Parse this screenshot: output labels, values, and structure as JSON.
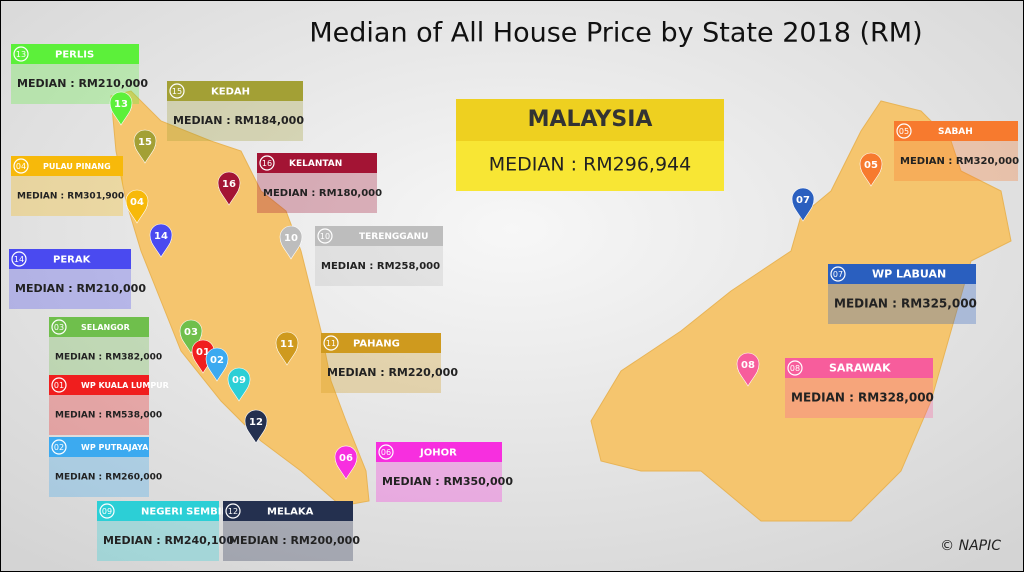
{
  "title": "Median of All House Price by State 2018 (RM)",
  "national": {
    "name": "MALAYSIA",
    "median": "MEDIAN : RM296,944"
  },
  "states": [
    {
      "number": "13",
      "name": "PERLIS",
      "median": "MEDIAN : RM210,000",
      "color": "#5cf03a"
    },
    {
      "number": "15",
      "name": "KEDAH",
      "median": "MEDIAN : RM184,000",
      "color": "#a3a035"
    },
    {
      "number": "04",
      "name": "PULAU PINANG",
      "median": "MEDIAN : RM301,900",
      "color": "#f7b90a"
    },
    {
      "number": "16",
      "name": "KELANTAN",
      "median": "MEDIAN : RM180,000",
      "color": "#a31434"
    },
    {
      "number": "10",
      "name": "TERENGGANU",
      "median": "MEDIAN : RM258,000",
      "color": "#bdbdbd"
    },
    {
      "number": "14",
      "name": "PERAK",
      "median": "MEDIAN : RM210,000",
      "color": "#4a4af0"
    },
    {
      "number": "03",
      "name": "SELANGOR",
      "median": "MEDIAN : RM382,000",
      "color": "#6fbf4c"
    },
    {
      "number": "01",
      "name": "WP KUALA LUMPUR",
      "median": "MEDIAN : RM538,000",
      "color": "#f01e1e"
    },
    {
      "number": "02",
      "name": "WP PUTRAJAYA",
      "median": "MEDIAN : RM260,000",
      "color": "#3caaf0"
    },
    {
      "number": "09",
      "name": "NEGERI SEMBILAN",
      "median": "MEDIAN : RM240,100",
      "color": "#2ccfd6"
    },
    {
      "number": "12",
      "name": "MELAKA",
      "median": "MEDIAN : RM200,000",
      "color": "#24304f"
    },
    {
      "number": "11",
      "name": "PAHANG",
      "median": "MEDIAN : RM220,000",
      "color": "#cf9a1e"
    },
    {
      "number": "06",
      "name": "JOHOR",
      "median": "MEDIAN : RM350,000",
      "color": "#f72fdf"
    },
    {
      "number": "05",
      "name": "SABAH",
      "median": "MEDIAN : RM320,000",
      "color": "#f77a2e"
    },
    {
      "number": "07",
      "name": "WP LABUAN",
      "median": "MEDIAN : RM325,000",
      "color": "#2a5fbf"
    },
    {
      "number": "08",
      "name": "SARAWAK",
      "median": "MEDIAN : RM328,000",
      "color": "#f75d9c"
    }
  ],
  "credit": "© NAPIC"
}
